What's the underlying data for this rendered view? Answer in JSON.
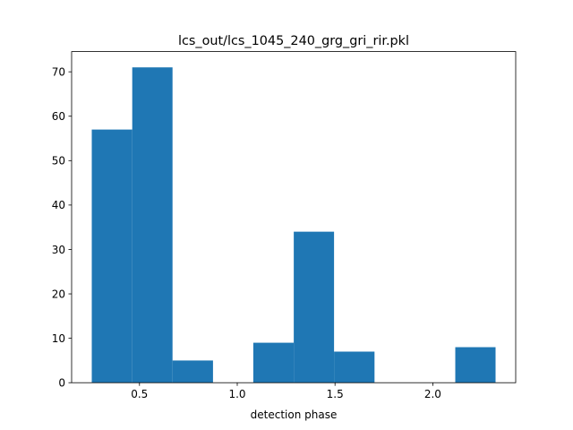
{
  "chart_data": {
    "type": "bar",
    "title": "lcs_out/lcs_1045_240_grg_gri_rir.pkl",
    "xlabel": "detection phase",
    "ylabel": "",
    "xlim": [
      0.153,
      2.424
    ],
    "ylim": [
      0,
      74.55
    ],
    "xticks": [
      0.5,
      1.0,
      1.5,
      2.0
    ],
    "xtick_labels": [
      "0.5",
      "1.0",
      "1.5",
      "2.0"
    ],
    "yticks": [
      0,
      10,
      20,
      30,
      40,
      50,
      60,
      70
    ],
    "ytick_labels": [
      "0",
      "10",
      "20",
      "30",
      "40",
      "50",
      "60",
      "70"
    ],
    "bin_edges": [
      0.256,
      0.463,
      0.669,
      0.876,
      1.082,
      1.289,
      1.495,
      1.702,
      1.908,
      2.115,
      2.321
    ],
    "values": [
      57,
      71,
      5,
      0,
      9,
      34,
      7,
      0,
      0,
      8
    ],
    "bar_color": "#1f77b4",
    "grid": false
  }
}
